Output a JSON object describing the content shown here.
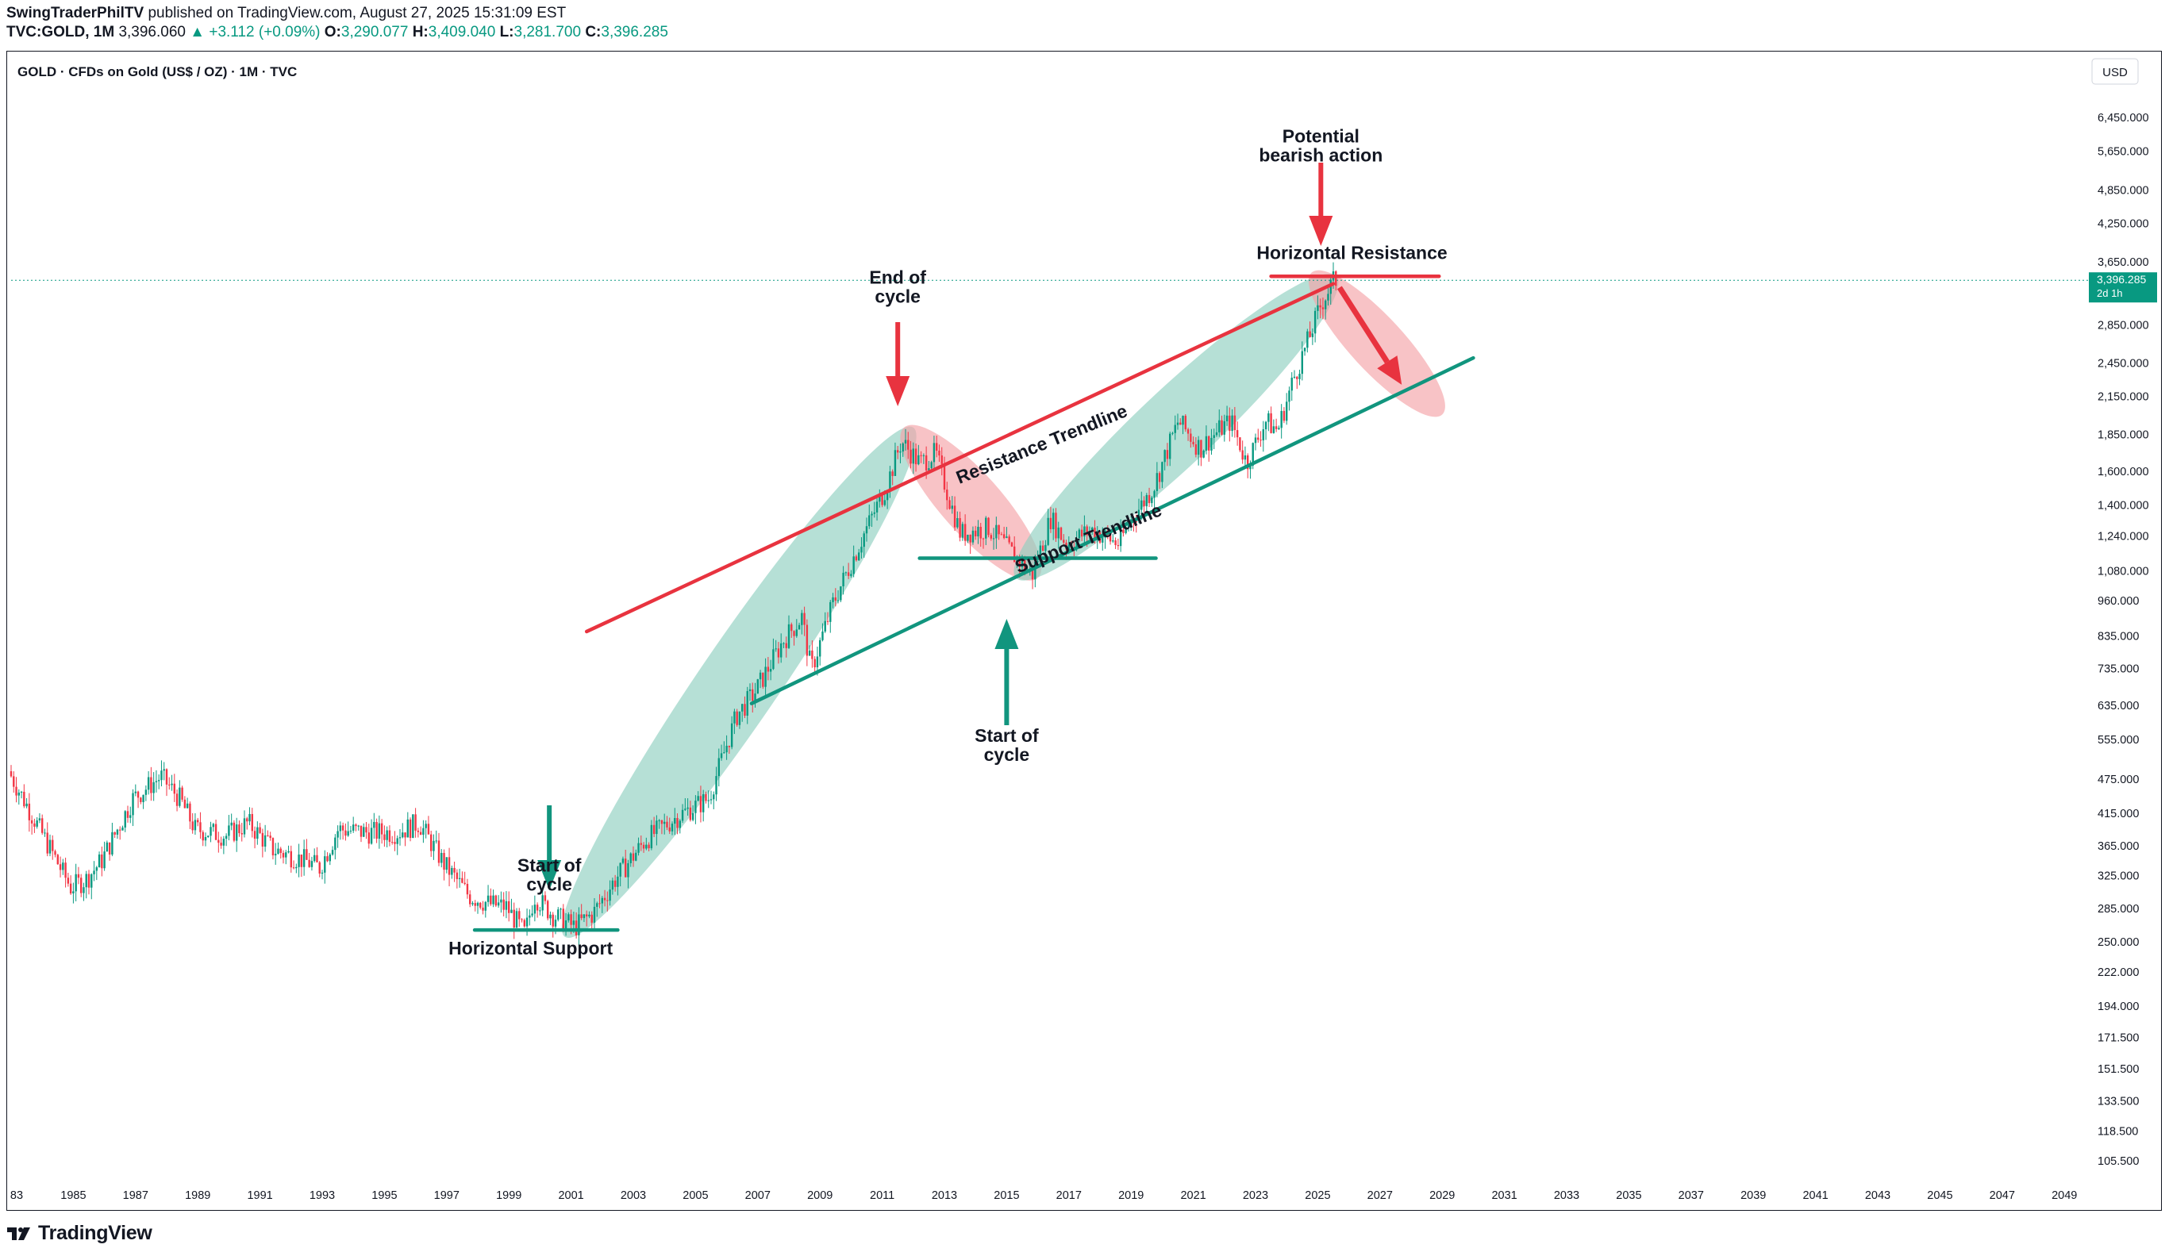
{
  "header": {
    "author": "SwingTraderPhilTV",
    "published": "published on TradingView.com, August 27, 2025 15:31:09 EST",
    "symbol": "TVC:GOLD, 1M",
    "last": "3,396.060",
    "change": "▲ +3.112 (+0.09%)",
    "o_label": "O:",
    "o_value": "3,290.077",
    "h_label": "H:",
    "h_value": "3,409.040",
    "l_label": "L:",
    "l_value": "3,281.700",
    "c_label": "C:",
    "c_value": "3,396.285"
  },
  "chart_title": "GOLD · CFDs on Gold (US$ / OZ) · 1M · TVC",
  "currency_label": "USD",
  "price_tag": {
    "value": "3,396.285",
    "countdown": "2d 1h"
  },
  "footer": {
    "brand": "TradingView"
  },
  "colors": {
    "up": "#089981",
    "down": "#f23645",
    "red_line": "#e8333f",
    "green_line": "#11957e",
    "green_zone": "#8fcfc0",
    "red_zone": "#f4a3a8"
  },
  "chart_data": {
    "type": "candlestick",
    "title": "GOLD · CFDs on Gold (US$ / OZ) · 1M · TVC",
    "y_scale": "log",
    "ylim": [
      100,
      7500
    ],
    "xlim": [
      1983.0,
      2050.5
    ],
    "x_tick_labels": [
      "83",
      "1985",
      "1987",
      "1989",
      "1991",
      "1993",
      "1995",
      "1997",
      "1999",
      "2001",
      "2003",
      "2005",
      "2007",
      "2009",
      "2011",
      "2013",
      "2015",
      "2017",
      "2019",
      "2021",
      "2023",
      "2025",
      "2027",
      "2029",
      "2031",
      "2033",
      "2035",
      "2037",
      "2039",
      "2041",
      "2043",
      "2045",
      "2047",
      "2049"
    ],
    "y_tick_labels": [
      "6,450.000",
      "5,650.000",
      "4,850.000",
      "4,250.000",
      "3,650.000",
      "2,850.000",
      "2,450.000",
      "2,150.000",
      "1,850.000",
      "1,600.000",
      "1,400.000",
      "1,240.000",
      "1,080.000",
      "960.000",
      "835.000",
      "735.000",
      "635.000",
      "555.000",
      "475.000",
      "415.000",
      "365.000",
      "325.000",
      "285.000",
      "250.000",
      "222.000",
      "194.000",
      "171.500",
      "151.500",
      "133.500",
      "118.500",
      "105.500"
    ],
    "price_path": [
      [
        1983.0,
        490
      ],
      [
        1984.0,
        390
      ],
      [
        1985.0,
        310
      ],
      [
        1985.5,
        320
      ],
      [
        1986.0,
        345
      ],
      [
        1987.0,
        440
      ],
      [
        1987.9,
        480
      ],
      [
        1988.5,
        440
      ],
      [
        1989.0,
        390
      ],
      [
        1990.0,
        380
      ],
      [
        1990.7,
        400
      ],
      [
        1991.5,
        360
      ],
      [
        1992.5,
        345
      ],
      [
        1993.0,
        335
      ],
      [
        1993.6,
        390
      ],
      [
        1994.5,
        385
      ],
      [
        1995.5,
        385
      ],
      [
        1996.2,
        400
      ],
      [
        1997.0,
        340
      ],
      [
        1997.8,
        300
      ],
      [
        1998.5,
        290
      ],
      [
        1999.0,
        287
      ],
      [
        1999.6,
        258
      ],
      [
        1999.9,
        300
      ],
      [
        2000.5,
        278
      ],
      [
        2001.2,
        265
      ],
      [
        2001.8,
        280
      ],
      [
        2002.5,
        320
      ],
      [
        2003.5,
        375
      ],
      [
        2004.5,
        410
      ],
      [
        2005.5,
        440
      ],
      [
        2006.4,
        610
      ],
      [
        2007.0,
        670
      ],
      [
        2007.9,
        820
      ],
      [
        2008.5,
        900
      ],
      [
        2008.8,
        730
      ],
      [
        2009.5,
        950
      ],
      [
        2010.5,
        1250
      ],
      [
        2011.2,
        1500
      ],
      [
        2011.7,
        1800
      ],
      [
        2012.3,
        1650
      ],
      [
        2012.8,
        1720
      ],
      [
        2013.3,
        1400
      ],
      [
        2013.6,
        1250
      ],
      [
        2014.5,
        1280
      ],
      [
        2015.0,
        1200
      ],
      [
        2015.9,
        1060
      ],
      [
        2016.5,
        1330
      ],
      [
        2017.0,
        1200
      ],
      [
        2017.8,
        1270
      ],
      [
        2018.7,
        1200
      ],
      [
        2019.0,
        1300
      ],
      [
        2019.8,
        1500
      ],
      [
        2020.6,
        1950
      ],
      [
        2021.3,
        1750
      ],
      [
        2022.0,
        1900
      ],
      [
        2022.3,
        1950
      ],
      [
        2022.8,
        1650
      ],
      [
        2023.4,
        1950
      ],
      [
        2023.8,
        1880
      ],
      [
        2024.3,
        2300
      ],
      [
        2024.8,
        2700
      ],
      [
        2025.2,
        3100
      ],
      [
        2025.6,
        3396
      ]
    ],
    "lines": [
      {
        "name": "Resistance Trendline",
        "from": [
          2001.5,
          850
        ],
        "to": [
          2025.5,
          3350
        ]
      },
      {
        "name": "Support Trendline",
        "from": [
          2006.8,
          640
        ],
        "to": [
          2030.0,
          2500
        ]
      },
      {
        "name": "Horizontal Support",
        "from": [
          1997.9,
          262
        ],
        "to": [
          2002.5,
          262
        ]
      },
      {
        "name": "Horizontal Resistance",
        "from": [
          2023.5,
          3450
        ],
        "to": [
          2028.9,
          3450
        ]
      },
      {
        "name": "Horizontal line",
        "from": [
          2012.2,
          1135
        ],
        "to": [
          2019.8,
          1135
        ]
      }
    ],
    "annotations": [
      {
        "text_lines": [
          "Start of",
          "cycle"
        ],
        "x": 2000.3,
        "y": 330
      },
      {
        "text": "Horizontal Support",
        "x": 1999.7,
        "y": 238
      },
      {
        "text_lines": [
          "End of",
          "cycle"
        ],
        "x": 2011.5,
        "y": 3350
      },
      {
        "text_lines": [
          "Start of",
          "cycle"
        ],
        "x": 2015.0,
        "y": 550
      },
      {
        "text_lines": [
          "Potential",
          "bearish action"
        ],
        "x": 2025.1,
        "y": 5850
      },
      {
        "text": "Horizontal Resistance",
        "x": 2026.1,
        "y": 3690
      },
      {
        "text": "Resistance Trendline",
        "x": 2016.2,
        "y": 1740,
        "angle": -22
      },
      {
        "text": "Support Trendline",
        "x": 2017.7,
        "y": 1200,
        "angle": -22
      }
    ],
    "last_price": 3396.285
  }
}
